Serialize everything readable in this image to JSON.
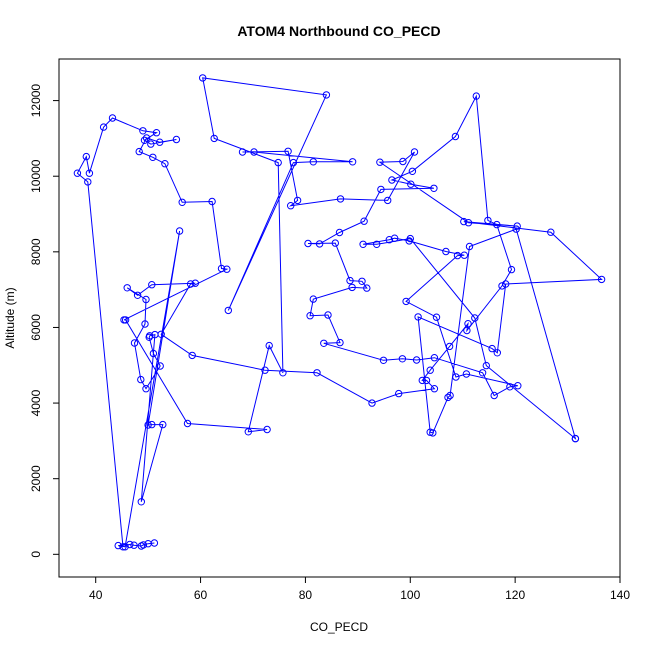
{
  "chart_data": {
    "type": "line",
    "title": "ATOM4 Northbound CO_PECD",
    "xlabel": "CO_PECD",
    "ylabel": "Altitude (m)",
    "xlim": [
      33,
      140
    ],
    "ylim": [
      -600,
      13100
    ],
    "x_ticks": [
      "40",
      "60",
      "80",
      "100",
      "120",
      "140"
    ],
    "y_ticks": [
      "0",
      "2000",
      "4000",
      "6000",
      "8000",
      "10000",
      "12000"
    ],
    "series": [
      {
        "marker": "open-circle",
        "color": "#0000ff",
        "x": [
          45.2,
          38.5,
          36.5,
          38.2,
          38.8,
          41.5,
          43.2,
          49.0,
          51.6,
          49.3,
          50.5,
          55.4,
          52.2,
          49.7,
          48.3,
          50.9,
          53.2,
          56.5,
          62.2,
          64.0,
          65.0,
          45.4,
          45.7,
          57.5,
          72.7,
          69.1,
          73.1,
          75.7,
          74.8,
          62.6,
          60.4,
          84.0,
          65.3,
          77.7,
          81.5,
          89.0,
          70.2,
          68.0,
          76.7,
          78.5,
          77.2,
          86.7,
          95.7,
          100.8,
          98.6,
          94.2,
          111.1,
          120.4,
          110.2,
          126.8,
          136.5,
          118.2,
          116.6,
          115.6,
          101.5,
          103.8,
          104.3,
          107.2,
          107.6,
          111.3,
          120.2,
          131.5,
          131.5,
          114.5,
          112.3,
          100.0,
          93.6,
          91.0,
          96.0,
          97.0,
          99.8,
          106.8,
          110.3,
          109.0,
          99.2,
          105.0,
          108.7,
          110.7,
          120.5,
          119.0,
          116.0,
          113.8,
          104.6,
          101.2,
          98.5,
          94.9,
          83.5,
          86.6,
          84.3,
          80.9,
          81.5,
          88.9,
          91.7,
          90.8,
          88.5,
          85.7,
          80.5,
          82.7,
          86.5,
          91.2,
          94.4,
          104.5,
          100.1,
          96.5,
          100.4,
          108.6,
          112.6,
          114.8,
          116.5,
          119.3,
          117.5,
          110.8,
          111.0,
          107.5,
          103.8,
          102.3,
          103.1,
          104.6,
          97.8,
          92.7,
          82.2,
          72.3,
          58.4,
          52.5,
          58.1,
          59.0,
          50.7,
          48.0,
          46.0,
          49.6,
          49.4,
          47.4,
          48.6,
          49.6,
          52.3,
          51.0,
          50.2,
          50.3,
          51.3,
          48.7,
          52.8,
          50.7,
          50.0,
          56.0,
          45.6,
          44.3,
          46.5,
          47.3,
          48.7,
          49.1,
          50.0,
          51.2
        ],
        "y": [
          200,
          9850,
          10080,
          10520,
          10080,
          11300,
          11540,
          11200,
          11150,
          10950,
          10850,
          10970,
          10900,
          11010,
          10650,
          10500,
          10330,
          9310,
          9330,
          7560,
          7540,
          6200,
          6200,
          3460,
          3300,
          3240,
          5520,
          4800,
          10360,
          11000,
          12600,
          12150,
          6450,
          10360,
          10380,
          10380,
          10640,
          10640,
          10660,
          9360,
          9220,
          9400,
          9360,
          10640,
          10390,
          10370,
          8770,
          8680,
          8800,
          8520,
          7270,
          7150,
          5330,
          5440,
          6280,
          3230,
          3210,
          4150,
          4200,
          8140,
          8600,
          3060,
          3060,
          4990,
          6250,
          8350,
          8200,
          8200,
          8320,
          8360,
          8290,
          8010,
          7910,
          7900,
          6690,
          6270,
          4690,
          4770,
          4460,
          4430,
          4200,
          4800,
          5200,
          5140,
          5170,
          5130,
          5580,
          5600,
          6330,
          6310,
          6750,
          7060,
          7040,
          7220,
          7240,
          8230,
          8220,
          8210,
          8510,
          8810,
          9650,
          9680,
          9790,
          9900,
          10130,
          11050,
          12120,
          8830,
          8720,
          7530,
          7100,
          5920,
          6100,
          5500,
          4870,
          4600,
          4600,
          4380,
          4250,
          4000,
          4800,
          4870,
          5260,
          5820,
          7150,
          7170,
          7130,
          6850,
          7050,
          6740,
          6090,
          5590,
          4620,
          4380,
          4980,
          5310,
          5740,
          5780,
          5810,
          1390,
          3430,
          3430,
          3420,
          8550,
          200,
          230,
          260,
          240,
          220,
          250,
          280,
          300
        ]
      }
    ]
  }
}
